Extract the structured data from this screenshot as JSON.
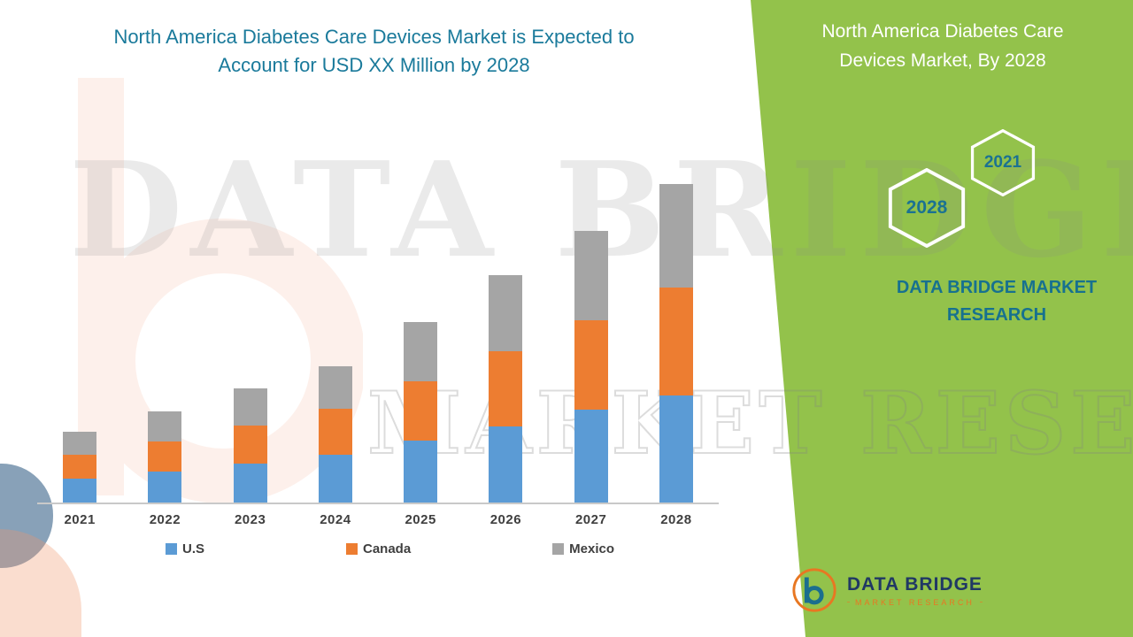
{
  "header": {
    "title": "North America Diabetes Care Devices Market is Expected to Account for USD XX Million by 2028"
  },
  "side_panel": {
    "title": "North America Diabetes Care Devices Market, By 2028",
    "hexagons": [
      {
        "label": "2028"
      },
      {
        "label": "2021"
      }
    ],
    "brand_text": "DATA BRIDGE MARKET RESEARCH",
    "accent_green": "#93c24b",
    "teal": "#17718f"
  },
  "watermark": {
    "line1": "DATA BRIDGE",
    "line2": "MARKET RESEARCH"
  },
  "footer_logo": {
    "name": "DATA BRIDGE",
    "subtitle": "MARKET RESEARCH"
  },
  "chart_data": {
    "type": "bar",
    "stacked": true,
    "title": "North America Diabetes Care Devices Market is Expected to Account for USD XX Million by 2028",
    "xlabel": "",
    "ylabel": "",
    "categories": [
      "2021",
      "2022",
      "2023",
      "2024",
      "2025",
      "2026",
      "2027",
      "2028"
    ],
    "series": [
      {
        "name": "U.S",
        "color": "#5b9bd5",
        "values": [
          27,
          35,
          44,
          54,
          70,
          86,
          106,
          122
        ]
      },
      {
        "name": "Canada",
        "color": "#ed7d31",
        "values": [
          27,
          34,
          43,
          53,
          68,
          86,
          101,
          122
        ]
      },
      {
        "name": "Mexico",
        "color": "#a5a5a5",
        "values": [
          26,
          35,
          43,
          48,
          67,
          86,
          102,
          118
        ]
      }
    ],
    "ylim": [
      0,
      400
    ],
    "grid": false,
    "y_axis_labels_shown": false,
    "legend_position": "bottom"
  }
}
